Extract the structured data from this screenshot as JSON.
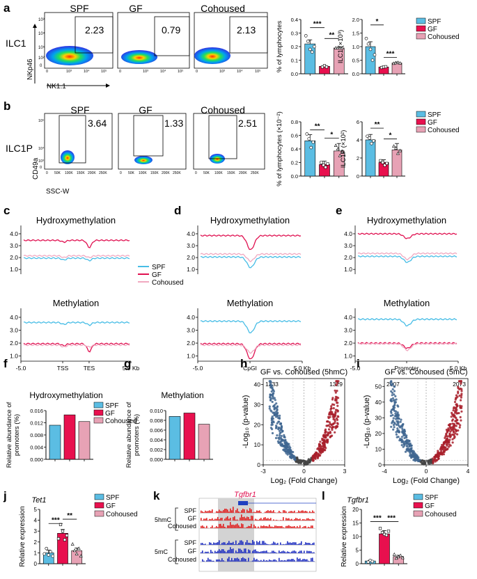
{
  "colors": {
    "spf": "#5bbde3",
    "gf": "#e8104e",
    "cohoused": "#e7a2b5",
    "spf_line": "#47bde6",
    "gf_line": "#e01050",
    "co_line": "#f0a8c0"
  },
  "panel_letters": [
    "a",
    "b",
    "c",
    "d",
    "e",
    "f",
    "g",
    "h",
    "i",
    "j",
    "k",
    "l"
  ],
  "groups": [
    "SPF",
    "GF",
    "Cohoused"
  ],
  "legend": [
    "SPF",
    "GF",
    "Cohoused"
  ],
  "flow_a": {
    "row_label": "ILC1",
    "ylabel": "NKp46",
    "xlabel": "NK1.1",
    "values": [
      "2.23",
      "0.79",
      "2.13"
    ],
    "ticks": [
      "10³",
      "10⁴",
      "10⁵",
      "10²",
      "0"
    ],
    "xticks": [
      "0",
      "10³",
      "10⁴",
      "10⁵"
    ]
  },
  "flow_b": {
    "row_label": "ILC1P",
    "ylabel": "CD49a",
    "xlabel": "SSC-W",
    "values": [
      "3.64",
      "1.33",
      "2.51"
    ],
    "ticks": [
      "10⁵",
      "10⁴",
      "10³",
      "0"
    ],
    "xticks": [
      "0",
      "50K",
      "100K",
      "150K",
      "200K",
      "250K"
    ]
  },
  "bars": {
    "a_pct": {
      "ylabel": "% of lymphocytes",
      "yticks": [
        "0.0",
        "0.1",
        "0.2",
        "0.3",
        "0.4"
      ],
      "sig": [
        "***",
        "**"
      ]
    },
    "a_abs": {
      "ylabel": "ILC1 (×10³)",
      "yticks": [
        "0.0",
        "0.5",
        "1.0",
        "1.5",
        "2.0"
      ],
      "sig": [
        "*",
        "***"
      ]
    },
    "b_pct": {
      "ylabel": "% of lymphocytes (×10⁻²)",
      "yticks": [
        "0.0",
        "0.2",
        "0.4",
        "0.6",
        "0.8"
      ],
      "sig": [
        "**",
        "*"
      ]
    },
    "b_abs": {
      "ylabel": "ILC1P (×10²)",
      "yticks": [
        "0",
        "2",
        "4",
        "6"
      ],
      "sig": [
        "**",
        "*"
      ]
    }
  },
  "profiles": {
    "c": {
      "title_top": "Hydroxymethylation",
      "title_bottom": "Methylation",
      "xticks": [
        "-5.0",
        "TSS",
        "TES",
        "5.0 Kb"
      ]
    },
    "d": {
      "title_top": "Hydroxymethylation",
      "title_bottom": "Methylation",
      "xticks": [
        "-5.0",
        "CpGI",
        "5.0 Kb"
      ]
    },
    "e": {
      "title_top": "Hydroxymethylation",
      "title_bottom": "Methylation",
      "xticks": [
        "-5.0",
        "Promoter",
        "5.0 Kb"
      ]
    },
    "yticks_top": [
      "4.0",
      "3.0",
      "2.0",
      "1.0"
    ],
    "yticks_bottom": [
      "4.0",
      "3.0",
      "2.0",
      "1.0"
    ]
  },
  "fg": {
    "f": {
      "title": "Hydroxymethylation",
      "ylabel1": "Relative abundance of",
      "ylabel2": "promoters (%)",
      "yticks": [
        "0.000",
        "0.004",
        "0.008",
        "0.012",
        "0.016"
      ]
    },
    "g": {
      "title": "Methylation",
      "ylabel1": "Relative abundance of",
      "ylabel2": "promoters (%)",
      "yticks": [
        "0.000",
        "0.002",
        "0.004",
        "0.006",
        "0.008",
        "0.010"
      ]
    }
  },
  "volcano": {
    "h": {
      "title": "GF vs. Cohoused (5hmC)",
      "left_count": "1233",
      "right_count": "1329",
      "yticks": [
        "0",
        "10",
        "20",
        "30",
        "40"
      ],
      "xticks": [
        "-3",
        "0",
        "3"
      ]
    },
    "i": {
      "title": "GF vs. Cohoused (5mC)",
      "left_count": "2007",
      "right_count": "2073",
      "yticks": [
        "0",
        "10",
        "20",
        "30",
        "40",
        "50"
      ],
      "xticks": [
        "-4",
        "0",
        "4"
      ]
    },
    "ylabel": "-Log₁₀ (p-value)",
    "xlabel": "Log₂ (Fold Change)"
  },
  "j": {
    "gene": "Tet1",
    "ylabel": "Relative expression",
    "yticks": [
      "0",
      "1",
      "2",
      "3",
      "4",
      "5"
    ],
    "sig": [
      "***",
      "**"
    ]
  },
  "k": {
    "gene": "Tgfbr1",
    "mark1": "5hmC",
    "mark2": "5mC",
    "tracks": [
      "SPF",
      "GF",
      "Cohoused",
      "SPF",
      "GF",
      "Cohoused"
    ]
  },
  "l": {
    "gene": "Tgfbr1",
    "ylabel": "Relative expression",
    "yticks": [
      "0",
      "5",
      "10",
      "15",
      "20"
    ],
    "sig": [
      "***",
      "***"
    ]
  },
  "chart_data": [
    {
      "type": "bar",
      "panel": "a",
      "title": "% of lymphocytes",
      "categories": [
        "SPF",
        "GF",
        "Cohoused"
      ],
      "values": [
        0.22,
        0.055,
        0.19
      ],
      "ylim": [
        0,
        0.4
      ]
    },
    {
      "type": "bar",
      "panel": "a",
      "title": "ILC1 (×10³)",
      "categories": [
        "SPF",
        "GF",
        "Cohoused"
      ],
      "values": [
        1.0,
        0.25,
        0.4
      ],
      "ylim": [
        0,
        2.0
      ]
    },
    {
      "type": "bar",
      "panel": "b",
      "title": "% of lymphocytes (×10⁻²)",
      "categories": [
        "SPF",
        "GF",
        "Cohoused"
      ],
      "values": [
        0.52,
        0.17,
        0.37
      ],
      "ylim": [
        0,
        0.8
      ]
    },
    {
      "type": "bar",
      "panel": "b",
      "title": "ILC1P (×10²)",
      "categories": [
        "SPF",
        "GF",
        "Cohoused"
      ],
      "values": [
        4.0,
        1.5,
        2.9
      ],
      "ylim": [
        0,
        6
      ]
    },
    {
      "type": "bar",
      "panel": "f",
      "title": "Hydroxymethylation",
      "categories": [
        "SPF",
        "GF",
        "Cohoused"
      ],
      "values": [
        0.0112,
        0.0146,
        0.0124
      ],
      "ylim": [
        0,
        0.016
      ]
    },
    {
      "type": "bar",
      "panel": "g",
      "title": "Methylation",
      "categories": [
        "SPF",
        "GF",
        "Cohoused"
      ],
      "values": [
        0.0088,
        0.0095,
        0.0072
      ],
      "ylim": [
        0,
        0.01
      ]
    },
    {
      "type": "bar",
      "panel": "j",
      "title": "Tet1",
      "categories": [
        "SPF",
        "GF",
        "Cohoused"
      ],
      "values": [
        1.0,
        2.8,
        1.2
      ],
      "ylim": [
        0,
        5
      ]
    },
    {
      "type": "bar",
      "panel": "l",
      "title": "Tgfbr1",
      "categories": [
        "SPF",
        "GF",
        "Cohoused"
      ],
      "values": [
        1.0,
        11.0,
        2.6
      ],
      "ylim": [
        0,
        20
      ]
    }
  ]
}
